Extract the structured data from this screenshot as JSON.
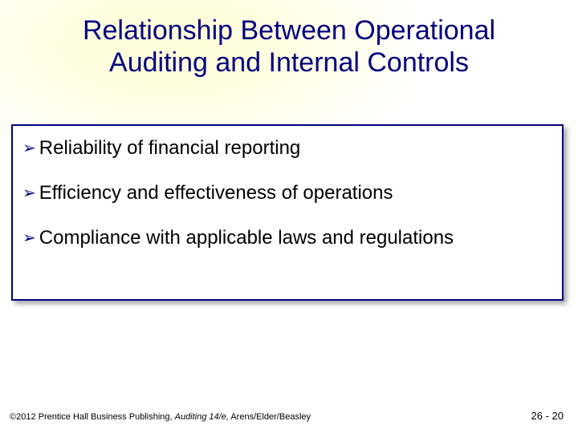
{
  "title": {
    "line1": "Relationship Between Operational",
    "line2": "Auditing and Internal Controls",
    "color": "#000080",
    "fontsize": 34
  },
  "bullets": {
    "items": [
      "Reliability of financial reporting",
      "Efficiency and effectiveness of operations",
      "Compliance with applicable laws and regulations"
    ],
    "marker": "➢",
    "marker_color": "#000080",
    "text_color": "#000000",
    "fontsize": 24
  },
  "content_box": {
    "border_color": "#000080",
    "background_color": "#ffffff",
    "shadow": true
  },
  "footer": {
    "copyright": "©2012 Prentice Hall Business Publishing, ",
    "book_title": "Auditing 14/e,",
    "authors": " Arens/Elder/Beasley",
    "page": "26 - 20"
  },
  "background": {
    "spotlight_color": "#fffdd8",
    "base_color": "#ffffff"
  }
}
